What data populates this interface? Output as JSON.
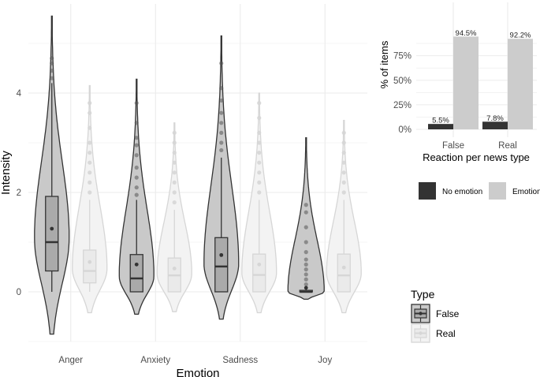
{
  "colors": {
    "false_dark": "#333333",
    "false_fill": "#c9c9c9",
    "false_box": "#aaaaaa",
    "real_line": "#d6d6d6",
    "real_fill": "#f3f3f3",
    "real_box": "#eaeaea",
    "no_emotion": "#333333",
    "emotion": "#cccccc",
    "grid": "#ebebeb"
  },
  "chart_data": [
    {
      "type": "violin",
      "title": "",
      "xlabel": "Emotion",
      "ylabel": "Intensity",
      "ylim": [
        -1,
        5.8
      ],
      "yticks": [
        0,
        2,
        4
      ],
      "categories": [
        "Anger",
        "Anxiety",
        "Sadness",
        "Joy"
      ],
      "legend": {
        "title": "Type",
        "position": "right",
        "entries": [
          "False",
          "Real"
        ]
      },
      "series": [
        {
          "name": "False",
          "stats": [
            {
              "min": -0.85,
              "max": 5.55,
              "q1": 0.42,
              "median": 1.0,
              "q3": 1.92,
              "mean": 1.27,
              "whisker_low": 0,
              "whisker_high": 4.2,
              "outliers": [
                4.3,
                4.45,
                4.6,
                4.7
              ]
            },
            {
              "min": -0.45,
              "max": 4.28,
              "q1": 0.0,
              "median": 0.27,
              "q3": 0.75,
              "mean": 0.55,
              "whisker_low": 0,
              "whisker_high": 1.85,
              "outliers": [
                1.95,
                2.1,
                2.3,
                2.5,
                2.75,
                2.95,
                3.1,
                3.4,
                3.8
              ]
            },
            {
              "min": -0.55,
              "max": 5.15,
              "q1": 0.0,
              "median": 0.51,
              "q3": 1.09,
              "mean": 0.74,
              "whisker_low": 0,
              "whisker_high": 2.7,
              "outliers": [
                2.85,
                3.0,
                3.2,
                3.4,
                3.6,
                3.85,
                4.1,
                4.6
              ]
            },
            {
              "min": -0.15,
              "max": 3.1,
              "q1": 0.0,
              "median": 0.0,
              "q3": 0.03,
              "mean": 0.08,
              "whisker_low": 0,
              "whisker_high": 0.1,
              "outliers": [
                0.15,
                0.25,
                0.35,
                0.45,
                0.55,
                0.65,
                0.8,
                1.0,
                1.3,
                1.6,
                1.75
              ]
            }
          ]
        },
        {
          "name": "Real",
          "stats": [
            {
              "min": -0.42,
              "max": 4.15,
              "q1": 0.18,
              "median": 0.42,
              "q3": 0.84,
              "mean": 0.6,
              "whisker_low": 0,
              "whisker_high": 1.85,
              "outliers": [
                2.0,
                2.2,
                2.4,
                2.6,
                2.8,
                3.0,
                3.3,
                3.6,
                3.8
              ]
            },
            {
              "min": -0.4,
              "max": 3.4,
              "q1": 0.0,
              "median": 0.33,
              "q3": 0.68,
              "mean": 0.47,
              "whisker_low": 0,
              "whisker_high": 1.65,
              "outliers": [
                1.8,
                2.0,
                2.2,
                2.4,
                2.6,
                2.8,
                3.0,
                3.2
              ]
            },
            {
              "min": -0.42,
              "max": 4.0,
              "q1": 0.0,
              "median": 0.34,
              "q3": 0.76,
              "mean": 0.55,
              "whisker_low": 0,
              "whisker_high": 1.85,
              "outliers": [
                2.0,
                2.2,
                2.4,
                2.6,
                2.8,
                3.0,
                3.2,
                3.5,
                3.8
              ]
            },
            {
              "min": -0.42,
              "max": 3.45,
              "q1": 0.0,
              "median": 0.33,
              "q3": 0.76,
              "mean": 0.49,
              "whisker_low": 0,
              "whisker_high": 1.85,
              "outliers": [
                2.0,
                2.2,
                2.4,
                2.6,
                2.8,
                3.0,
                3.2
              ]
            }
          ]
        }
      ]
    },
    {
      "type": "bar",
      "title": "",
      "xlabel": "Reaction per news type",
      "ylabel": "% of items",
      "ylim": [
        0,
        100
      ],
      "yticks": [
        0,
        25,
        50,
        75
      ],
      "ytick_labels": [
        "0%",
        "25%",
        "50%",
        "75%"
      ],
      "categories": [
        "False",
        "Real"
      ],
      "legend": {
        "title": "",
        "position": "bottom",
        "entries": [
          "No emotion",
          "Emotion"
        ]
      },
      "series": [
        {
          "name": "No emotion",
          "values": [
            5.5,
            7.8
          ],
          "labels": [
            "5.5%",
            "7.8%"
          ]
        },
        {
          "name": "Emotion",
          "values": [
            94.5,
            92.2
          ],
          "labels": [
            "94.5%",
            "92.2%"
          ]
        }
      ]
    }
  ]
}
